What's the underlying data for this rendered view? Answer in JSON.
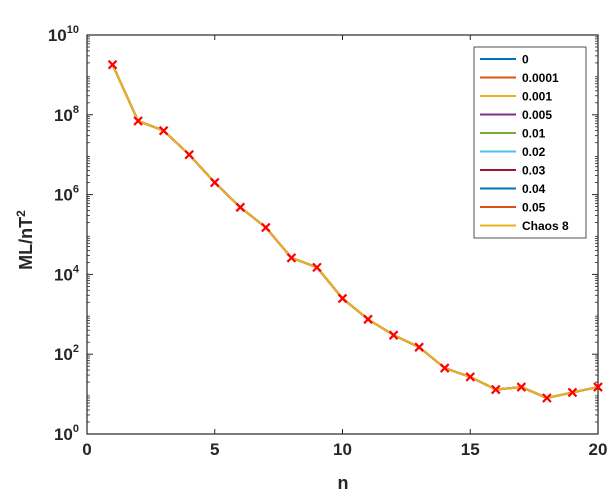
{
  "chart_data": {
    "type": "line",
    "title": "",
    "xlabel": "n",
    "ylabel": "ML/nT",
    "ylabel_sup": "2",
    "xlim": [
      0,
      20
    ],
    "ylim": [
      1,
      10000000000
    ],
    "yscale": "log",
    "xticks": [
      0,
      5,
      10,
      15,
      20
    ],
    "yticks": [
      {
        "base": "10",
        "exp": "0",
        "value": 1
      },
      {
        "base": "10",
        "exp": "2",
        "value": 100
      },
      {
        "base": "10",
        "exp": "4",
        "value": 10000
      },
      {
        "base": "10",
        "exp": "6",
        "value": 1000000
      },
      {
        "base": "10",
        "exp": "8",
        "value": 100000000
      },
      {
        "base": "10",
        "exp": "10",
        "value": 10000000000
      }
    ],
    "grid": false,
    "legend_position": "top-right",
    "x": [
      1,
      2,
      3,
      4,
      5,
      6,
      7,
      8,
      9,
      10,
      11,
      12,
      13,
      14,
      15,
      16,
      17,
      18,
      19,
      20
    ],
    "series": [
      {
        "name": "0",
        "color": "#0072BD",
        "values": [
          1800000000,
          70000000,
          40000000,
          10000000,
          2000000,
          480000,
          150000,
          26000,
          15000,
          2500,
          750,
          300,
          150,
          45,
          27,
          13,
          15,
          8,
          11,
          15
        ]
      },
      {
        "name": "0.0001",
        "color": "#D95319",
        "values": [
          1800000000,
          70000000,
          40000000,
          10000000,
          2000000,
          480000,
          150000,
          26000,
          15000,
          2500,
          750,
          300,
          150,
          45,
          27,
          13,
          15,
          8,
          11,
          15
        ]
      },
      {
        "name": "0.001",
        "color": "#EDB120",
        "values": [
          1800000000,
          70000000,
          40000000,
          10000000,
          2000000,
          480000,
          150000,
          26000,
          15000,
          2500,
          750,
          300,
          150,
          45,
          27,
          13,
          15,
          8,
          11,
          15
        ]
      },
      {
        "name": "0.005",
        "color": "#7E2F8E",
        "values": [
          1800000000,
          70000000,
          40000000,
          10000000,
          2000000,
          480000,
          150000,
          26000,
          15000,
          2500,
          750,
          300,
          150,
          45,
          27,
          13,
          15,
          8,
          11,
          15
        ]
      },
      {
        "name": "0.01",
        "color": "#77AC30",
        "values": [
          1800000000,
          70000000,
          40000000,
          10000000,
          2000000,
          480000,
          150000,
          26000,
          15000,
          2500,
          750,
          300,
          150,
          45,
          27,
          13,
          15,
          8,
          11,
          15
        ]
      },
      {
        "name": "0.02",
        "color": "#4DBEEE",
        "values": [
          1800000000,
          70000000,
          40000000,
          10000000,
          2000000,
          480000,
          150000,
          26000,
          15000,
          2500,
          750,
          300,
          150,
          45,
          27,
          13,
          15,
          8,
          11,
          15
        ]
      },
      {
        "name": "0.03",
        "color": "#A2142F",
        "values": [
          1800000000,
          70000000,
          40000000,
          10000000,
          2000000,
          480000,
          150000,
          26000,
          15000,
          2500,
          750,
          300,
          150,
          45,
          27,
          13,
          15,
          8,
          11,
          15
        ]
      },
      {
        "name": "0.04",
        "color": "#0072BD",
        "values": [
          1800000000,
          70000000,
          40000000,
          10000000,
          2000000,
          480000,
          150000,
          26000,
          15000,
          2500,
          750,
          300,
          150,
          45,
          27,
          13,
          15,
          8,
          11,
          15
        ]
      },
      {
        "name": "0.05",
        "color": "#D95319",
        "values": [
          1800000000,
          70000000,
          40000000,
          10000000,
          2000000,
          480000,
          150000,
          26000,
          15000,
          2500,
          750,
          300,
          150,
          45,
          27,
          13,
          15,
          8,
          11,
          15
        ]
      },
      {
        "name": "Chaos 8",
        "color": "#EDB120",
        "marker": "x",
        "marker_color": "#FF0000",
        "values": [
          1800000000,
          70000000,
          40000000,
          10000000,
          2000000,
          480000,
          150000,
          26000,
          15000,
          2500,
          750,
          300,
          150,
          45,
          27,
          13,
          15,
          8,
          11,
          15
        ]
      }
    ]
  }
}
